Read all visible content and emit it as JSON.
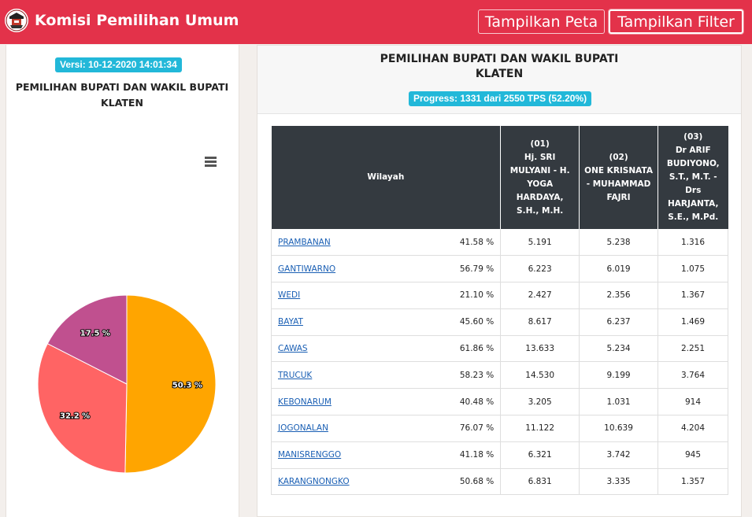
{
  "header": {
    "title": "Komisi Pemilihan Umum",
    "buttons": {
      "map": "Tampilkan Peta",
      "filter": "Tampilkan Filter"
    },
    "colors": {
      "primary": "#e3324a"
    }
  },
  "left_panel": {
    "version": "Versi: 10-12-2020 14:01:34",
    "title_line1": "PEMILIHAN BUPATI DAN WAKIL BUPATI",
    "title_line2": "KLATEN",
    "menu_icon": "hamburger-icon"
  },
  "chart_data": {
    "type": "pie",
    "slices": [
      {
        "label": "50.3 %",
        "value": 50.3,
        "color": "#ffa500"
      },
      {
        "label": "32.2 %",
        "value": 32.2,
        "color": "#ff6464"
      },
      {
        "label": "17.5 %",
        "value": 17.5,
        "color": "#c0508f"
      }
    ]
  },
  "right_panel": {
    "title_line1": "PEMILIHAN BUPATI DAN WAKIL BUPATI",
    "title_line2": "KLATEN",
    "progress": "Progress: 1331 dari 2550 TPS (52.20%)",
    "table": {
      "region_header": "Wilayah",
      "candidates": [
        {
          "number": "(01)",
          "name": "Hj. SRI MULYANI - H. YOGA HARDAYA, S.H., M.H."
        },
        {
          "number": "(02)",
          "name": "ONE KRISNATA - MUHAMMAD FAJRI"
        },
        {
          "number": "(03)",
          "name": "Dr ARIF BUDIYONO, S.T., M.T. - Drs HARJANTA, S.E., M.Pd."
        }
      ],
      "rows": [
        {
          "region": "PRAMBANAN",
          "pct": "41.58 %",
          "c1": "5.191",
          "c2": "5.238",
          "c3": "1.316"
        },
        {
          "region": "GANTIWARNO",
          "pct": "56.79 %",
          "c1": "6.223",
          "c2": "6.019",
          "c3": "1.075"
        },
        {
          "region": "WEDI",
          "pct": "21.10 %",
          "c1": "2.427",
          "c2": "2.356",
          "c3": "1.367"
        },
        {
          "region": "BAYAT",
          "pct": "45.60 %",
          "c1": "8.617",
          "c2": "6.237",
          "c3": "1.469"
        },
        {
          "region": "CAWAS",
          "pct": "61.86 %",
          "c1": "13.633",
          "c2": "5.234",
          "c3": "2.251"
        },
        {
          "region": "TRUCUK",
          "pct": "58.23 %",
          "c1": "14.530",
          "c2": "9.199",
          "c3": "3.764"
        },
        {
          "region": "KEBONARUM",
          "pct": "40.48 %",
          "c1": "3.205",
          "c2": "1.031",
          "c3": "914"
        },
        {
          "region": "JOGONALAN",
          "pct": "76.07 %",
          "c1": "11.122",
          "c2": "10.639",
          "c3": "4.204"
        },
        {
          "region": "MANISRENGGO",
          "pct": "41.18 %",
          "c1": "6.321",
          "c2": "3.742",
          "c3": "945"
        },
        {
          "region": "KARANGNONGKO",
          "pct": "50.68 %",
          "c1": "6.831",
          "c2": "3.335",
          "c3": "1.357"
        }
      ]
    }
  }
}
